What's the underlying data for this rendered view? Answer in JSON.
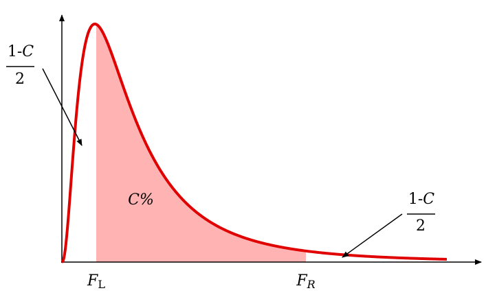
{
  "left_tail": {
    "numerator_prefix": "1-",
    "numerator_var": "C",
    "denominator": "2"
  },
  "right_tail": {
    "numerator_prefix": "1-",
    "numerator_var": "C",
    "denominator": "2"
  },
  "center": {
    "var": "C",
    "symbol": "%"
  },
  "lower_bound": {
    "var": "F",
    "subscript": "L"
  },
  "upper_bound": {
    "var": "F",
    "subscript": "R"
  }
}
